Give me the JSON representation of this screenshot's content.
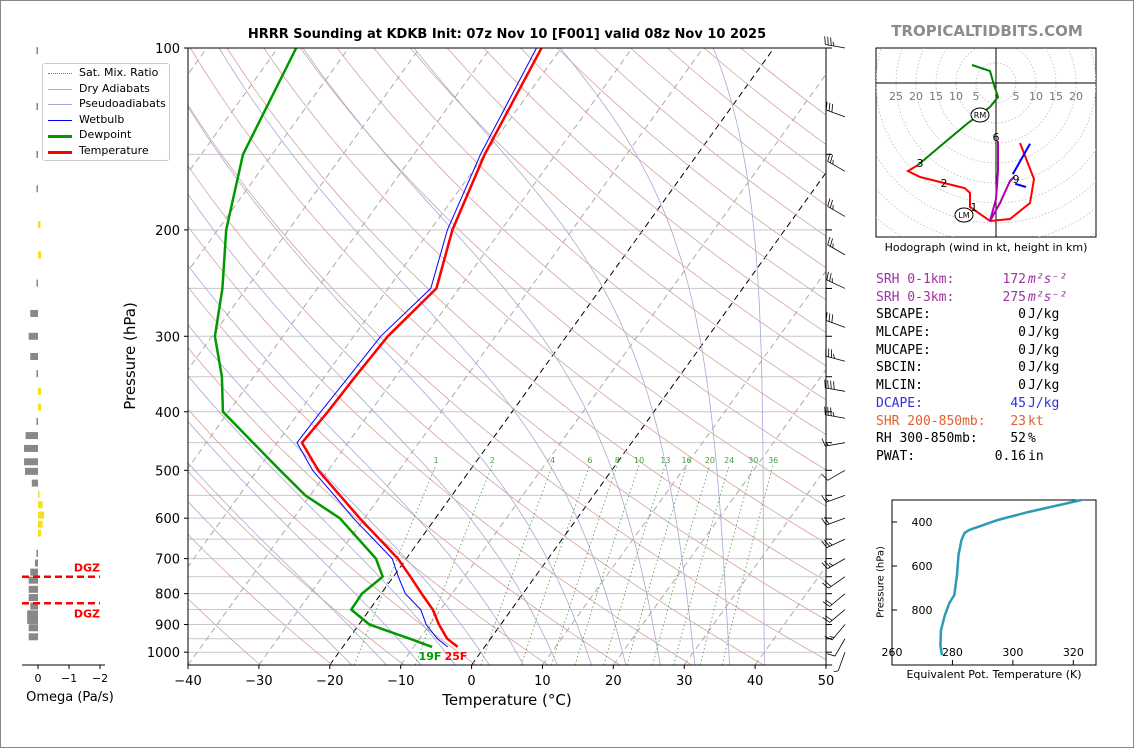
{
  "title": "HRRR Sounding at KDKB Init: 07z Nov 10 [F001] valid 08z Nov 10 2025",
  "watermark": "TROPICALTIDBITS.COM",
  "legend": [
    {
      "label": "Sat. Mix. Ratio",
      "color": "#4a9a4a",
      "style": "dotted"
    },
    {
      "label": "Dry Adiabats",
      "color": "#d9a0a0",
      "style": "solid"
    },
    {
      "label": "Pseudoadiabats",
      "color": "#a8a8d8",
      "style": "solid"
    },
    {
      "label": "Wetbulb",
      "color": "#0000ff",
      "style": "solid"
    },
    {
      "label": "Dewpoint",
      "color": "#009900",
      "style": "thick"
    },
    {
      "label": "Temperature",
      "color": "#ff0000",
      "style": "thick"
    }
  ],
  "chart_data": {
    "type": "line",
    "title": "HRRR Sounding at KDKB Init: 07z Nov 10 [F001] valid 08z Nov 10 2025",
    "xlabel": "Temperature (°C)",
    "ylabel": "Pressure (hPa)",
    "xlim": [
      -40,
      50
    ],
    "ylim": [
      1050,
      100
    ],
    "xticks": [
      "−40",
      "−30",
      "−20",
      "−10",
      "0",
      "10",
      "20",
      "30",
      "40",
      "50"
    ],
    "xtick_values": [
      -40,
      -30,
      -20,
      -10,
      0,
      10,
      20,
      30,
      40,
      50
    ],
    "yticks": [
      "100",
      "200",
      "300",
      "400",
      "500",
      "600",
      "700",
      "800",
      "900",
      "1000"
    ],
    "ytick_values": [
      100,
      200,
      300,
      400,
      500,
      600,
      700,
      800,
      900,
      1000
    ],
    "pressure": [
      100,
      150,
      200,
      250,
      300,
      350,
      400,
      450,
      500,
      550,
      600,
      700,
      750,
      800,
      850,
      900,
      950,
      980
    ],
    "series": [
      {
        "name": "Temperature",
        "color": "#ff0000",
        "values": [
          -52.8,
          -50,
          -46.9,
          -43.2,
          -45.2,
          -45.7,
          -46,
          -46.5,
          -41.4,
          -35.8,
          -30.7,
          -21.2,
          -17.6,
          -14.3,
          -11.1,
          -8.7,
          -6.1,
          -3.8
        ]
      },
      {
        "name": "Dewpoint",
        "color": "#009900",
        "values": [
          -87.4,
          -84.1,
          -78.8,
          -73.4,
          -69.6,
          -64.5,
          -60.8,
          -53.4,
          -46.8,
          -40.7,
          -33.5,
          -24.3,
          -21.5,
          -22.7,
          -22.6,
          -18.5,
          -11.4,
          -7.4
        ]
      },
      {
        "name": "Wetbulb",
        "color": "#0000ff",
        "values": [
          -53.5,
          -50.6,
          -47.6,
          -44,
          -46.2,
          -46.6,
          -47,
          -47.2,
          -42.2,
          -36.6,
          -31.6,
          -22,
          -19.3,
          -16.6,
          -12.8,
          -10.5,
          -7.5,
          -5.2
        ]
      }
    ],
    "surface_labels": {
      "dewpoint": "19F",
      "temperature": "25F"
    },
    "mixing_ratio_labels": [
      1,
      2,
      4,
      6,
      8,
      10,
      13,
      16,
      20,
      24,
      30,
      36
    ],
    "wind_barbs": [
      {
        "p": 100,
        "dir": 280,
        "spd": 35
      },
      {
        "p": 130,
        "dir": 290,
        "spd": 30
      },
      {
        "p": 160,
        "dir": 300,
        "spd": 25
      },
      {
        "p": 190,
        "dir": 300,
        "spd": 25
      },
      {
        "p": 220,
        "dir": 300,
        "spd": 25
      },
      {
        "p": 250,
        "dir": 295,
        "spd": 25
      },
      {
        "p": 290,
        "dir": 290,
        "spd": 30
      },
      {
        "p": 330,
        "dir": 285,
        "spd": 35
      },
      {
        "p": 370,
        "dir": 280,
        "spd": 40
      },
      {
        "p": 410,
        "dir": 280,
        "spd": 35
      },
      {
        "p": 450,
        "dir": 260,
        "spd": 15
      },
      {
        "p": 500,
        "dir": 240,
        "spd": 10
      },
      {
        "p": 550,
        "dir": 250,
        "spd": 15
      },
      {
        "p": 600,
        "dir": 250,
        "spd": 20
      },
      {
        "p": 650,
        "dir": 245,
        "spd": 25
      },
      {
        "p": 700,
        "dir": 240,
        "spd": 25
      },
      {
        "p": 750,
        "dir": 235,
        "spd": 20
      },
      {
        "p": 800,
        "dir": 230,
        "spd": 20
      },
      {
        "p": 850,
        "dir": 230,
        "spd": 20
      },
      {
        "p": 900,
        "dir": 220,
        "spd": 15
      },
      {
        "p": 950,
        "dir": 210,
        "spd": 10
      },
      {
        "p": 1000,
        "dir": 200,
        "spd": 5
      }
    ]
  },
  "omega": {
    "xlabel": "Omega (Pa/s)",
    "xticks": [
      "0",
      "−1",
      "−2"
    ],
    "xtick_values": [
      0,
      -1,
      -2
    ],
    "dgz_label": "DGZ",
    "dgz_top_hpa": 750,
    "dgz_bottom_hpa": 830,
    "pressure": [
      101,
      125,
      150,
      171,
      196,
      220,
      245,
      275,
      300,
      324,
      346,
      370,
      393,
      415,
      438,
      460,
      484,
      502,
      525,
      548,
      570,
      593,
      614,
      635,
      686,
      712,
      737,
      760,
      787,
      812,
      839,
      864,
      886,
      911,
      943
    ],
    "values": [
      0.05,
      0.05,
      0.05,
      0.03,
      -0.08,
      -0.1,
      0.05,
      0.25,
      0.3,
      0.25,
      0.05,
      -0.1,
      -0.1,
      0.05,
      0.4,
      0.45,
      0.45,
      0.42,
      0.2,
      -0.05,
      -0.15,
      -0.2,
      -0.15,
      -0.1,
      0.05,
      0.1,
      0.25,
      0.3,
      0.3,
      0.3,
      0.25,
      0.35,
      0.35,
      0.3,
      0.3
    ]
  },
  "hodograph": {
    "caption": "Hodograph (wind in kt, height in km)",
    "ring_labels_left": [
      "25",
      "20",
      "15",
      "10",
      "5"
    ],
    "ring_labels_right": [
      "5",
      "10",
      "15",
      "20"
    ],
    "storm_motion": {
      "rm_label": "RM",
      "rm": [
        -4,
        -8
      ],
      "lm_label": "LM",
      "lm": [
        -8,
        -33
      ]
    },
    "height_labels": [
      {
        "label": "1",
        "u": -5.5,
        "v": -31
      },
      {
        "label": "2",
        "u": -13,
        "v": -25
      },
      {
        "label": "3",
        "u": -19,
        "v": -20
      },
      {
        "label": "6",
        "u": 0,
        "v": -13.5
      },
      {
        "label": "9",
        "u": 5,
        "v": -24
      }
    ],
    "segments": [
      {
        "color": "#ff0000",
        "points": [
          [
            6,
            -15
          ],
          [
            9.5,
            -24
          ],
          [
            8.5,
            -30
          ],
          [
            3.5,
            -34
          ],
          [
            -1.5,
            -34.5
          ],
          [
            -6.5,
            -31
          ],
          [
            -6.5,
            -27.5
          ],
          [
            -7.8,
            -26.3
          ],
          [
            -13,
            -25
          ],
          [
            -19,
            -23.5
          ],
          [
            -22,
            -22
          ],
          [
            -19.5,
            -20.5
          ]
        ]
      },
      {
        "color": "#008000",
        "points": [
          [
            -19.5,
            -20.5
          ],
          [
            -13,
            -15
          ],
          [
            -7,
            -10
          ],
          [
            -1.5,
            -6
          ],
          [
            0.5,
            -3.5
          ],
          [
            -0.5,
            -0.5
          ],
          [
            -1.5,
            3
          ],
          [
            -6,
            4.5
          ]
        ]
      },
      {
        "color": "#b000b0",
        "points": [
          [
            0.5,
            -14.5
          ],
          [
            0.5,
            -22
          ],
          [
            0,
            -29
          ],
          [
            -1.5,
            -34.5
          ],
          [
            1,
            -30
          ],
          [
            3.5,
            -24.5
          ],
          [
            4.5,
            -23.5
          ]
        ]
      },
      {
        "color": "#0000ff",
        "points": [
          [
            4.2,
            -22.8
          ],
          [
            8.5,
            -15.2
          ]
        ]
      },
      {
        "color": "#0000ff",
        "points": [
          [
            4.8,
            -25.2
          ],
          [
            7.5,
            -26
          ]
        ]
      }
    ]
  },
  "stats": [
    {
      "label": "SRH 0-1km:",
      "value": "172",
      "unit": "m²s⁻²",
      "color": "#a030a0"
    },
    {
      "label": "SRH 0-3km:",
      "value": "275",
      "unit": "m²s⁻²",
      "color": "#a030a0"
    },
    {
      "label": "SBCAPE:",
      "value": "0",
      "unit": "J/kg",
      "color": "#000000"
    },
    {
      "label": "MLCAPE:",
      "value": "0",
      "unit": "J/kg",
      "color": "#000000"
    },
    {
      "label": "MUCAPE:",
      "value": "0",
      "unit": "J/kg",
      "color": "#000000"
    },
    {
      "label": "SBCIN:",
      "value": "0",
      "unit": "J/kg",
      "color": "#000000"
    },
    {
      "label": "MLCIN:",
      "value": "0",
      "unit": "J/kg",
      "color": "#000000"
    },
    {
      "label": "DCAPE:",
      "value": "45",
      "unit": "J/kg",
      "color": "#3030e0"
    },
    {
      "label": "SHR 200-850mb:",
      "value": "23",
      "unit": "kt",
      "color": "#e06030"
    },
    {
      "label": "RH 300-850mb:",
      "value": "52",
      "unit": "%",
      "color": "#000000"
    },
    {
      "label": "PWAT:",
      "value": "0.16",
      "unit": "in",
      "color": "#000000"
    }
  ],
  "theta_e": {
    "type": "line",
    "xlabel": "Equivalent Pot. Temperature (K)",
    "ylabel": "Pressure (hPa)",
    "xlim": [
      260,
      327.5
    ],
    "ylim": [
      1050,
      300
    ],
    "xticks": [
      "260",
      "280",
      "300",
      "320"
    ],
    "xtick_values": [
      260,
      280,
      300,
      320
    ],
    "yticks": [
      "400",
      "600",
      "800"
    ],
    "ytick_values": [
      400,
      600,
      800
    ],
    "color": "#2e9ab5",
    "pressure": [
      300,
      355,
      391,
      436,
      450,
      482,
      550,
      641,
      732,
      768,
      823,
      891,
      960,
      1005
    ],
    "values": [
      322.7,
      305,
      295,
      285.6,
      284,
      283,
      282,
      281.5,
      280.6,
      279,
      277.5,
      276.2,
      276,
      276.5
    ]
  }
}
